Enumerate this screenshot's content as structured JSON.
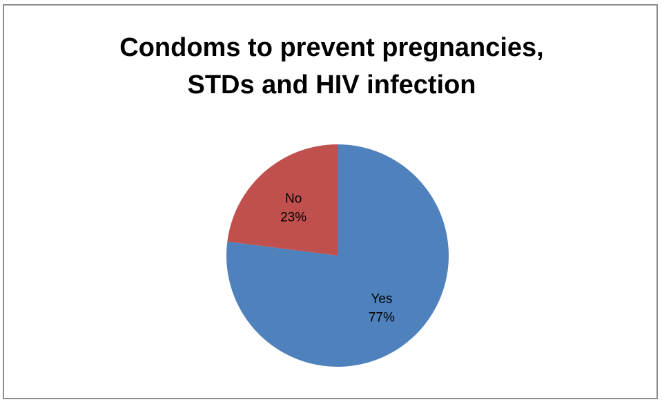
{
  "chart_data": {
    "type": "pie",
    "title_lines": [
      "Condoms to prevent pregnancies,",
      "STDs and HIV infection"
    ],
    "slices": [
      {
        "name": "No",
        "value": 23,
        "value_label": "23%",
        "color": "#c0504d"
      },
      {
        "name": "Yes",
        "value": 77,
        "value_label": "77%",
        "color": "#4f81bd"
      }
    ]
  }
}
